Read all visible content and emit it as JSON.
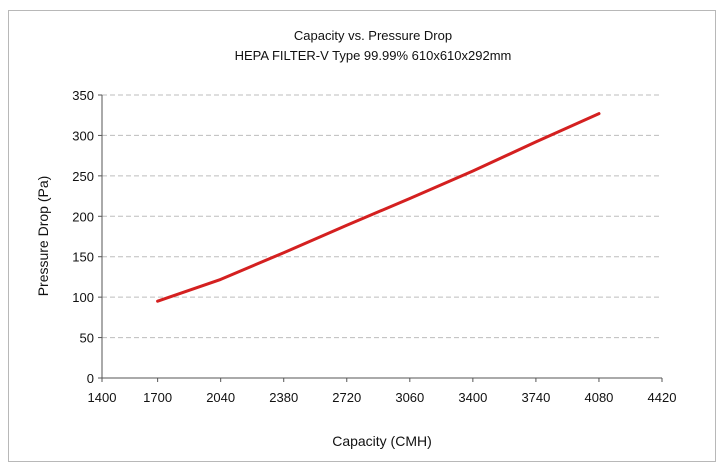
{
  "chart_data": {
    "type": "line",
    "title": "Capacity vs. Pressure Drop",
    "subtitle": "HEPA FILTER-V Type 99.99% 610x610x292mm",
    "xlabel": "Capacity (CMH)",
    "ylabel": "Pressure Drop (Pa)",
    "xlim": [
      1400,
      4420
    ],
    "ylim": [
      0,
      350
    ],
    "xticks": [
      1400,
      1700,
      2040,
      2380,
      2720,
      3060,
      3400,
      3740,
      4080,
      4420
    ],
    "yticks": [
      0,
      50,
      100,
      150,
      200,
      250,
      300,
      350
    ],
    "grid": true,
    "grid_style": "dashed-horizontal",
    "series": [
      {
        "color": "#d42020",
        "x": [
          1700,
          2040,
          2380,
          2720,
          3060,
          3400,
          3740,
          4080
        ],
        "y": [
          95,
          122,
          155,
          189,
          222,
          256,
          292,
          327
        ]
      }
    ]
  }
}
